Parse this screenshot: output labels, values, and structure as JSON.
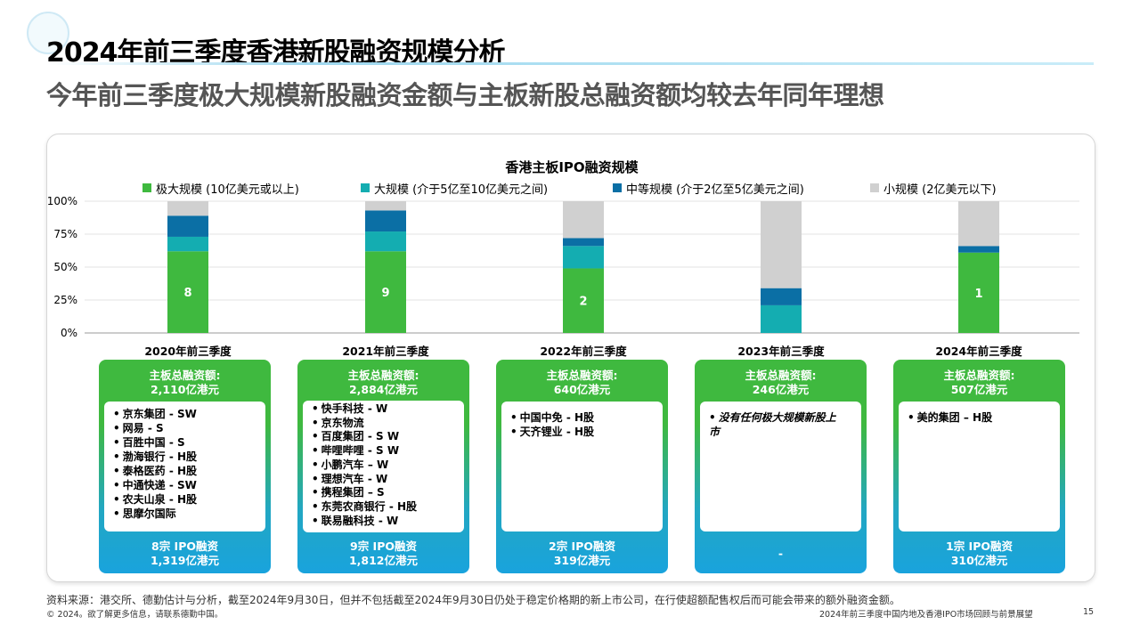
{
  "header": {
    "title": "2024年前三季度香港新股融资规模分析",
    "subtitle": "今年前三季度极大规模新股融资金额与主板新股总融资额均较去年同年理想"
  },
  "chart_data": {
    "type": "bar",
    "stacked": true,
    "title": "香港主板IPO融资规模",
    "categories": [
      "2020年前三季度",
      "2021年前三季度",
      "2022年前三季度",
      "2023年前三季度",
      "2024年前三季度"
    ],
    "yticks": [
      "100%",
      "75%",
      "50%",
      "25%",
      "0%"
    ],
    "ylim": [
      0,
      100
    ],
    "legend_position": "top",
    "series": [
      {
        "name": "极大规模 (10亿美元或以上)",
        "color": "#3fb93f",
        "values": [
          62,
          62,
          49,
          0,
          61
        ],
        "labels": [
          "8",
          "9",
          "2",
          "",
          "1"
        ]
      },
      {
        "name": "大规模 (介于5亿至10亿美元之间)",
        "color": "#14adb1",
        "values": [
          11,
          15,
          17,
          21,
          0
        ]
      },
      {
        "name": "中等规模 (介于2亿至5亿美元之间)",
        "color": "#0b6fa5",
        "values": [
          16,
          16,
          6,
          13,
          5
        ]
      },
      {
        "name": "小规模 (2亿美元以下)",
        "color": "#d0d0d0",
        "values": [
          11,
          7,
          28,
          66,
          34
        ]
      }
    ]
  },
  "cards": [
    {
      "head1": "主板总融资额:",
      "head2": "2,110亿港元",
      "items": [
        "京东集团 - SW",
        "网易 - S",
        "百胜中国 - S",
        "渤海银行 - H股",
        "泰格医药 - H股",
        "中通快递 - SW",
        "农夫山泉 - H股",
        "思摩尔国际"
      ],
      "foot1": "8宗 IPO融资",
      "foot2": "1,319亿港元"
    },
    {
      "head1": "主板总融资额:",
      "head2": "2,884亿港元",
      "items": [
        "快手科技 - W",
        "京东物流",
        "百度集团 - S W",
        "哔哩哔哩 - S W",
        "小鹏汽车 – W",
        "理想汽车 - W",
        "携程集团 – S",
        "东莞农商银行 - H股",
        "联易融科技 - W"
      ],
      "foot1": "9宗 IPO融资",
      "foot2": "1,812亿港元"
    },
    {
      "head1": "主板总融资额:",
      "head2": "640亿港元",
      "items": [
        "中国中免 - H股",
        "天齐锂业 - H股"
      ],
      "foot1": "2宗 IPO融资",
      "foot2": "319亿港元"
    },
    {
      "head1": "主板总融资额:",
      "head2": "246亿港元",
      "items": [
        "没有任何极大规模新股上市"
      ],
      "foot1": "-",
      "foot2": ""
    },
    {
      "head1": "主板总融资额:",
      "head2": "507亿港元",
      "items": [
        "美的集团 – H股"
      ],
      "foot1": "1宗 IPO融资",
      "foot2": "310亿港元"
    }
  ],
  "footer": {
    "source": "资料来源：港交所、德勤估计与分析，截至2024年9月30日，但并不包括截至2024年9月30日仍处于稳定价格期的新上市公司，在行使超额配售权后而可能会带来的额外融资金额。",
    "copyright": "© 2024。欲了解更多信息，请联系德勤中国。",
    "report_title": "2024年前三季度中国内地及香港IPO市场回顾与前景展望",
    "page_number": "15"
  }
}
